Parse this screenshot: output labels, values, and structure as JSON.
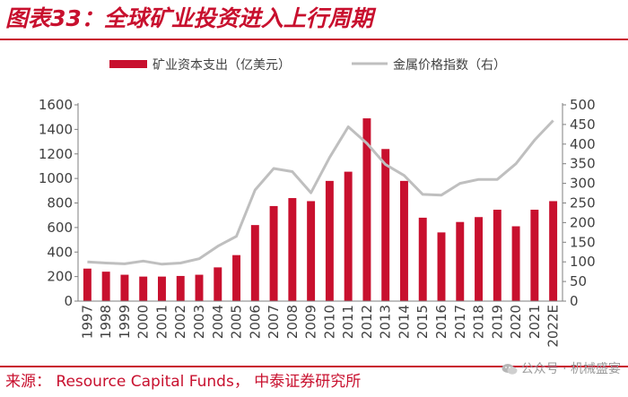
{
  "header": {
    "title": "图表33：全球矿业投资进入上行周期"
  },
  "footer": {
    "source": "来源： Resource Capital Funds， 中泰证券研究所",
    "watermark": "公众号 · 机械盛宴"
  },
  "colors": {
    "accent": "#c8102e",
    "bar": "#c8102e",
    "line": "#bfbfbf",
    "axis": "#7f7f7f",
    "text": "#404040"
  },
  "chart_data": {
    "type": "bar",
    "title": "",
    "xlabel": "",
    "ylabel": "",
    "legend_position": "top",
    "categories": [
      "1997",
      "1998",
      "1999",
      "2000",
      "2001",
      "2002",
      "2003",
      "2004",
      "2005",
      "2006",
      "2007",
      "2008",
      "2009",
      "2010",
      "2011",
      "2012",
      "2013",
      "2014",
      "2015",
      "2016",
      "2017",
      "2018",
      "2019",
      "2020",
      "2021",
      "2022E"
    ],
    "series": [
      {
        "name": "矿业资本支出（亿美元）",
        "type": "bar",
        "axis": "left",
        "values": [
          265,
          240,
          215,
          200,
          200,
          205,
          215,
          275,
          375,
          620,
          775,
          840,
          815,
          980,
          1055,
          1490,
          1240,
          980,
          680,
          560,
          645,
          685,
          745,
          610,
          745,
          815
        ]
      },
      {
        "name": "金属价格指数（右）",
        "type": "line",
        "axis": "right",
        "values": [
          100,
          97,
          95,
          102,
          94,
          97,
          108,
          140,
          165,
          283,
          338,
          330,
          276,
          366,
          444,
          402,
          348,
          320,
          272,
          270,
          300,
          310,
          310,
          350,
          410,
          460
        ]
      }
    ],
    "y_left": {
      "min": 0,
      "max": 1600,
      "step": 200,
      "ticks": [
        "0",
        "200",
        "400",
        "600",
        "800",
        "1000",
        "1200",
        "1400",
        "1600"
      ]
    },
    "y_right": {
      "min": 0,
      "max": 500,
      "step": 50,
      "ticks": [
        "0",
        "50",
        "100",
        "150",
        "200",
        "250",
        "300",
        "350",
        "400",
        "450",
        "500"
      ]
    }
  }
}
